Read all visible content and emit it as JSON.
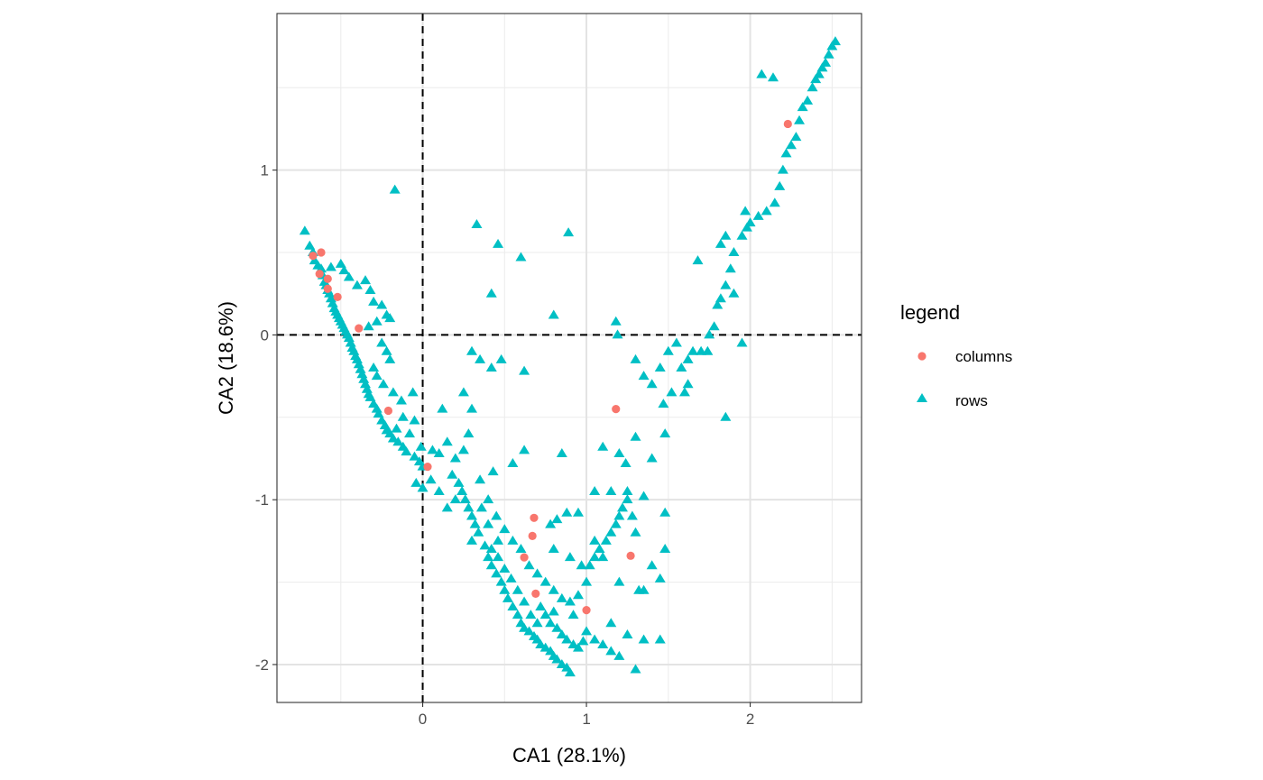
{
  "chart_data": {
    "type": "scatter",
    "xlabel": "CA1 (28.1%)",
    "ylabel": "CA2 (18.6%)",
    "xlim": [
      -0.89,
      2.68
    ],
    "ylim": [
      -2.23,
      1.95
    ],
    "x_ticks": [
      0,
      1,
      2
    ],
    "x_tick_labels": [
      "0",
      "1",
      "2"
    ],
    "y_ticks": [
      -2,
      -1,
      0,
      1
    ],
    "y_tick_labels": [
      "-2",
      "-1",
      "0",
      "1"
    ],
    "grid": true,
    "reference_lines": {
      "x": 0,
      "y": 0,
      "style": "dashed"
    },
    "legend": {
      "title": "legend",
      "position": "right",
      "entries": [
        {
          "label": "columns",
          "shape": "circle",
          "color": "#F8766D"
        },
        {
          "label": "rows",
          "shape": "triangle",
          "color": "#00BFC4"
        }
      ]
    },
    "series": [
      {
        "name": "columns",
        "shape": "circle",
        "color": "#F8766D",
        "points": [
          [
            -0.67,
            0.48
          ],
          [
            -0.62,
            0.5
          ],
          [
            -0.63,
            0.37
          ],
          [
            -0.58,
            0.34
          ],
          [
            -0.58,
            0.28
          ],
          [
            -0.52,
            0.23
          ],
          [
            -0.39,
            0.04
          ],
          [
            -0.21,
            -0.46
          ],
          [
            0.03,
            -0.8
          ],
          [
            1.18,
            -0.45
          ],
          [
            0.68,
            -1.11
          ],
          [
            0.67,
            -1.22
          ],
          [
            0.62,
            -1.35
          ],
          [
            0.69,
            -1.57
          ],
          [
            1.27,
            -1.34
          ],
          [
            1.0,
            -1.67
          ],
          [
            2.23,
            1.28
          ]
        ]
      },
      {
        "name": "rows",
        "shape": "triangle",
        "color": "#00BFC4",
        "points": [
          [
            -0.72,
            0.63
          ],
          [
            -0.69,
            0.54
          ],
          [
            -0.67,
            0.5
          ],
          [
            -0.66,
            0.45
          ],
          [
            -0.64,
            0.42
          ],
          [
            -0.62,
            0.4
          ],
          [
            -0.61,
            0.36
          ],
          [
            -0.6,
            0.32
          ],
          [
            -0.59,
            0.3
          ],
          [
            -0.58,
            0.27
          ],
          [
            -0.57,
            0.25
          ],
          [
            -0.56,
            0.22
          ],
          [
            -0.55,
            0.19
          ],
          [
            -0.54,
            0.16
          ],
          [
            -0.53,
            0.14
          ],
          [
            -0.52,
            0.12
          ],
          [
            -0.51,
            0.1
          ],
          [
            -0.5,
            0.08
          ],
          [
            -0.49,
            0.06
          ],
          [
            -0.48,
            0.04
          ],
          [
            -0.47,
            0.02
          ],
          [
            -0.46,
            0.0
          ],
          [
            -0.45,
            -0.02
          ],
          [
            -0.44,
            -0.05
          ],
          [
            -0.43,
            -0.08
          ],
          [
            -0.42,
            -0.1
          ],
          [
            -0.41,
            -0.13
          ],
          [
            -0.4,
            -0.15
          ],
          [
            -0.39,
            -0.18
          ],
          [
            -0.38,
            -0.21
          ],
          [
            -0.37,
            -0.24
          ],
          [
            -0.36,
            -0.27
          ],
          [
            -0.35,
            -0.3
          ],
          [
            -0.34,
            -0.33
          ],
          [
            -0.33,
            -0.36
          ],
          [
            -0.32,
            -0.38
          ],
          [
            -0.3,
            -0.42
          ],
          [
            -0.28,
            -0.45
          ],
          [
            -0.27,
            -0.48
          ],
          [
            -0.25,
            -0.52
          ],
          [
            -0.23,
            -0.55
          ],
          [
            -0.22,
            -0.58
          ],
          [
            -0.2,
            -0.6
          ],
          [
            -0.18,
            -0.63
          ],
          [
            -0.15,
            -0.65
          ],
          [
            -0.12,
            -0.68
          ],
          [
            -0.1,
            -0.71
          ],
          [
            -0.05,
            -0.74
          ],
          [
            -0.02,
            -0.77
          ],
          [
            0.0,
            -0.8
          ],
          [
            -0.56,
            0.41
          ],
          [
            -0.5,
            0.43
          ],
          [
            -0.48,
            0.39
          ],
          [
            -0.45,
            0.35
          ],
          [
            -0.4,
            0.3
          ],
          [
            -0.35,
            0.33
          ],
          [
            -0.32,
            0.27
          ],
          [
            -0.3,
            0.2
          ],
          [
            -0.25,
            0.18
          ],
          [
            -0.22,
            0.12
          ],
          [
            -0.2,
            0.1
          ],
          [
            -0.28,
            0.08
          ],
          [
            -0.33,
            0.05
          ],
          [
            -0.25,
            -0.05
          ],
          [
            -0.22,
            -0.1
          ],
          [
            -0.2,
            -0.15
          ],
          [
            -0.3,
            -0.2
          ],
          [
            -0.28,
            -0.25
          ],
          [
            -0.24,
            -0.3
          ],
          [
            -0.18,
            -0.35
          ],
          [
            -0.13,
            -0.4
          ],
          [
            -0.06,
            -0.35
          ],
          [
            -0.12,
            -0.5
          ],
          [
            -0.16,
            -0.57
          ],
          [
            -0.05,
            -0.52
          ],
          [
            -0.08,
            -0.6
          ],
          [
            -0.01,
            -0.68
          ],
          [
            -0.04,
            -0.9
          ],
          [
            0.0,
            -0.93
          ],
          [
            0.06,
            -0.7
          ],
          [
            0.1,
            -0.72
          ],
          [
            0.15,
            -0.65
          ],
          [
            0.2,
            -0.75
          ],
          [
            0.18,
            -0.85
          ],
          [
            0.22,
            -0.9
          ],
          [
            0.24,
            -0.95
          ],
          [
            0.26,
            -1.0
          ],
          [
            0.28,
            -1.05
          ],
          [
            0.3,
            -1.1
          ],
          [
            0.32,
            -1.15
          ],
          [
            0.3,
            -1.25
          ],
          [
            0.2,
            -1.0
          ],
          [
            0.15,
            -1.05
          ],
          [
            0.1,
            -0.95
          ],
          [
            0.05,
            -0.88
          ],
          [
            0.34,
            -1.2
          ],
          [
            0.38,
            -1.28
          ],
          [
            0.4,
            -1.35
          ],
          [
            0.42,
            -1.4
          ],
          [
            0.45,
            -1.45
          ],
          [
            0.48,
            -1.5
          ],
          [
            0.5,
            -1.55
          ],
          [
            0.52,
            -1.6
          ],
          [
            0.55,
            -1.65
          ],
          [
            0.58,
            -1.7
          ],
          [
            0.6,
            -1.75
          ],
          [
            0.62,
            -1.78
          ],
          [
            0.65,
            -1.8
          ],
          [
            0.68,
            -1.83
          ],
          [
            0.7,
            -1.85
          ],
          [
            0.72,
            -1.88
          ],
          [
            0.75,
            -1.9
          ],
          [
            0.78,
            -1.92
          ],
          [
            0.8,
            -1.95
          ],
          [
            0.82,
            -1.97
          ],
          [
            0.85,
            -2.0
          ],
          [
            0.88,
            -2.02
          ],
          [
            0.9,
            -2.05
          ],
          [
            0.72,
            -1.65
          ],
          [
            0.75,
            -1.7
          ],
          [
            0.78,
            -1.75
          ],
          [
            0.8,
            -1.68
          ],
          [
            0.82,
            -1.78
          ],
          [
            0.85,
            -1.82
          ],
          [
            0.88,
            -1.85
          ],
          [
            0.92,
            -1.88
          ],
          [
            0.95,
            -1.9
          ],
          [
            0.98,
            -1.86
          ],
          [
            1.0,
            -1.8
          ],
          [
            1.05,
            -1.85
          ],
          [
            1.1,
            -1.88
          ],
          [
            1.15,
            -1.92
          ],
          [
            1.2,
            -1.95
          ],
          [
            1.3,
            -2.03
          ],
          [
            1.35,
            -1.85
          ],
          [
            1.45,
            -1.85
          ],
          [
            0.7,
            -1.75
          ],
          [
            0.66,
            -1.7
          ],
          [
            0.62,
            -1.62
          ],
          [
            0.58,
            -1.55
          ],
          [
            0.54,
            -1.48
          ],
          [
            0.5,
            -1.42
          ],
          [
            0.46,
            -1.35
          ],
          [
            0.46,
            -1.25
          ],
          [
            0.55,
            -1.25
          ],
          [
            0.6,
            -1.3
          ],
          [
            0.65,
            -1.4
          ],
          [
            0.7,
            -1.45
          ],
          [
            0.75,
            -1.5
          ],
          [
            0.8,
            -1.55
          ],
          [
            0.85,
            -1.6
          ],
          [
            0.9,
            -1.62
          ],
          [
            0.95,
            -1.58
          ],
          [
            1.0,
            -1.5
          ],
          [
            1.02,
            -1.4
          ],
          [
            1.05,
            -1.35
          ],
          [
            1.08,
            -1.3
          ],
          [
            1.12,
            -1.25
          ],
          [
            1.15,
            -1.2
          ],
          [
            1.18,
            -1.15
          ],
          [
            1.2,
            -1.1
          ],
          [
            1.22,
            -1.05
          ],
          [
            1.25,
            -1.0
          ],
          [
            1.28,
            -1.1
          ],
          [
            1.3,
            -1.2
          ],
          [
            1.32,
            -1.55
          ],
          [
            1.35,
            -1.55
          ],
          [
            1.4,
            -1.4
          ],
          [
            1.45,
            -1.48
          ],
          [
            1.48,
            -1.3
          ],
          [
            1.48,
            -1.08
          ],
          [
            1.35,
            -0.98
          ],
          [
            1.25,
            -0.95
          ],
          [
            1.15,
            -0.95
          ],
          [
            1.05,
            -0.95
          ],
          [
            0.95,
            -1.08
          ],
          [
            0.88,
            -1.08
          ],
          [
            0.82,
            -1.12
          ],
          [
            0.78,
            -1.15
          ],
          [
            0.62,
            -0.7
          ],
          [
            0.85,
            -0.72
          ],
          [
            1.1,
            -0.68
          ],
          [
            1.2,
            -0.72
          ],
          [
            1.24,
            -0.78
          ],
          [
            1.3,
            -0.62
          ],
          [
            1.4,
            -0.75
          ],
          [
            1.48,
            -0.6
          ],
          [
            0.8,
            -1.3
          ],
          [
            0.9,
            -1.35
          ],
          [
            0.97,
            -1.4
          ],
          [
            1.05,
            -1.25
          ],
          [
            1.1,
            -1.35
          ],
          [
            1.2,
            -1.5
          ],
          [
            0.92,
            -1.7
          ],
          [
            1.15,
            -1.75
          ],
          [
            1.25,
            -1.82
          ],
          [
            0.43,
            -0.83
          ],
          [
            0.55,
            -0.78
          ],
          [
            0.4,
            -1.0
          ],
          [
            0.35,
            -0.88
          ],
          [
            0.45,
            -1.1
          ],
          [
            0.42,
            -1.3
          ],
          [
            0.5,
            -1.18
          ],
          [
            0.36,
            -1.05
          ],
          [
            0.4,
            -1.15
          ],
          [
            0.25,
            -0.7
          ],
          [
            0.28,
            -0.6
          ],
          [
            0.3,
            -0.45
          ],
          [
            0.12,
            -0.45
          ],
          [
            0.25,
            -0.35
          ],
          [
            0.3,
            -0.1
          ],
          [
            0.35,
            -0.15
          ],
          [
            0.42,
            -0.2
          ],
          [
            0.48,
            -0.15
          ],
          [
            0.62,
            -0.22
          ],
          [
            0.33,
            0.67
          ],
          [
            0.46,
            0.55
          ],
          [
            0.6,
            0.47
          ],
          [
            0.42,
            0.25
          ],
          [
            0.8,
            0.12
          ],
          [
            0.89,
            0.62
          ],
          [
            -0.17,
            0.88
          ],
          [
            1.18,
            0.08
          ],
          [
            1.19,
            0.0
          ],
          [
            1.3,
            -0.15
          ],
          [
            1.35,
            -0.25
          ],
          [
            1.4,
            -0.3
          ],
          [
            1.45,
            -0.2
          ],
          [
            1.5,
            -0.1
          ],
          [
            1.55,
            -0.05
          ],
          [
            1.52,
            -0.35
          ],
          [
            1.58,
            -0.2
          ],
          [
            1.6,
            -0.35
          ],
          [
            1.62,
            -0.15
          ],
          [
            1.65,
            -0.1
          ],
          [
            1.7,
            -0.1
          ],
          [
            1.75,
            0.0
          ],
          [
            1.78,
            0.05
          ],
          [
            1.8,
            0.18
          ],
          [
            1.82,
            0.22
          ],
          [
            1.85,
            0.3
          ],
          [
            1.88,
            0.4
          ],
          [
            1.9,
            0.5
          ],
          [
            1.85,
            0.6
          ],
          [
            1.82,
            0.55
          ],
          [
            1.95,
            0.6
          ],
          [
            1.98,
            0.65
          ],
          [
            2.0,
            0.68
          ],
          [
            2.05,
            0.72
          ],
          [
            2.1,
            0.75
          ],
          [
            2.15,
            0.8
          ],
          [
            2.18,
            0.9
          ],
          [
            2.2,
            1.0
          ],
          [
            2.22,
            1.1
          ],
          [
            2.25,
            1.15
          ],
          [
            2.28,
            1.2
          ],
          [
            2.3,
            1.3
          ],
          [
            2.32,
            1.38
          ],
          [
            2.35,
            1.42
          ],
          [
            2.38,
            1.5
          ],
          [
            2.4,
            1.55
          ],
          [
            2.42,
            1.58
          ],
          [
            2.44,
            1.62
          ],
          [
            2.46,
            1.65
          ],
          [
            2.48,
            1.7
          ],
          [
            2.5,
            1.75
          ],
          [
            2.52,
            1.78
          ],
          [
            1.97,
            0.75
          ],
          [
            1.9,
            0.25
          ],
          [
            1.85,
            -0.5
          ],
          [
            1.68,
            0.45
          ],
          [
            1.62,
            -0.3
          ],
          [
            1.47,
            -0.42
          ],
          [
            1.74,
            -0.1
          ],
          [
            1.95,
            -0.05
          ],
          [
            2.07,
            1.58
          ],
          [
            2.14,
            1.56
          ]
        ]
      }
    ]
  }
}
